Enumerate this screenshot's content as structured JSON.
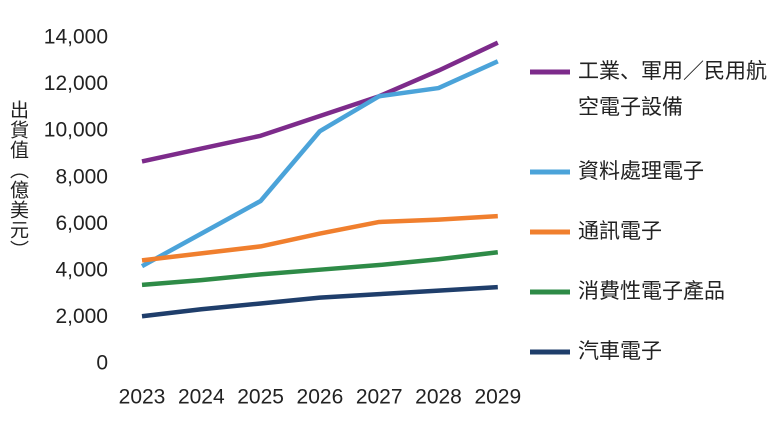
{
  "chart_data": {
    "type": "line",
    "y_axis_label": "出貨值（億美元）",
    "categories": [
      "2023",
      "2024",
      "2025",
      "2026",
      "2027",
      "2028",
      "2029"
    ],
    "series": [
      {
        "name": "工業、軍用／民用航空電子設備",
        "color": "#7d2b8b",
        "values": [
          8700,
          9250,
          9800,
          10650,
          11500,
          12600,
          13800
        ]
      },
      {
        "name": "資料處理電子",
        "color": "#4ba3d9",
        "values": [
          4200,
          5600,
          7000,
          10000,
          11500,
          11850,
          13000
        ]
      },
      {
        "name": "通訊電子",
        "color": "#f07f2e",
        "values": [
          4450,
          4750,
          5050,
          5600,
          6100,
          6200,
          6350
        ]
      },
      {
        "name": "消費性電子產品",
        "color": "#2e8b47",
        "values": [
          3400,
          3600,
          3850,
          4050,
          4250,
          4500,
          4800
        ]
      },
      {
        "name": "汽車電子",
        "color": "#1f3e6b",
        "values": [
          2050,
          2350,
          2600,
          2850,
          3000,
          3150,
          3300
        ]
      }
    ],
    "ylim": [
      0,
      14000
    ],
    "yticks": [
      0,
      {
        "value": 2000,
        "label": "2,000"
      },
      {
        "value": 4000,
        "label": "4,000"
      },
      {
        "value": 6000,
        "label": "6,000"
      },
      {
        "value": 8000,
        "label": "8,000"
      },
      {
        "value": 10000,
        "label": "10,000"
      },
      {
        "value": 12000,
        "label": "12,000"
      },
      {
        "value": 14000,
        "label": "14,000"
      }
    ],
    "grid": false
  }
}
